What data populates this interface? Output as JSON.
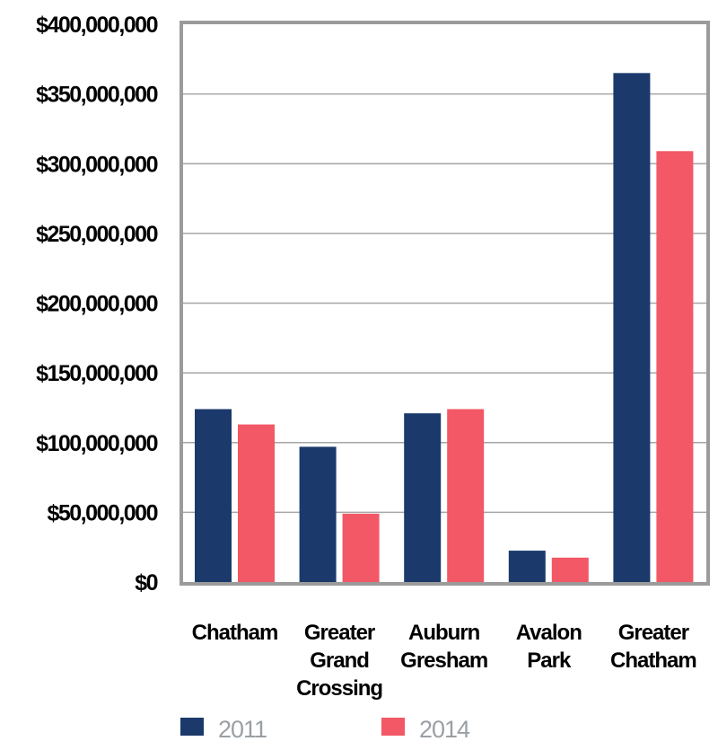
{
  "chart_data": {
    "type": "bar",
    "title": "",
    "xlabel": "",
    "ylabel": "",
    "categories": [
      [
        "Chatham"
      ],
      [
        "Greater",
        "Grand",
        "Crossing"
      ],
      [
        "Auburn",
        "Gresham"
      ],
      [
        "Avalon",
        "Park"
      ],
      [
        "Greater",
        "Chatham"
      ]
    ],
    "category_names": [
      "Chatham",
      "Greater Grand Crossing",
      "Auburn Gresham",
      "Avalon Park",
      "Greater Chatham"
    ],
    "series": [
      {
        "name": "2011",
        "color": "#1b3a6b",
        "values": [
          124000000,
          97000000,
          121000000,
          22500000,
          365000000
        ]
      },
      {
        "name": "2014",
        "color": "#f25865",
        "values": [
          113000000,
          49000000,
          124000000,
          17500000,
          309000000
        ]
      }
    ],
    "ylim": [
      0,
      400000000
    ],
    "yticks": [
      0,
      50000000,
      100000000,
      150000000,
      200000000,
      250000000,
      300000000,
      350000000,
      400000000
    ],
    "ytick_labels": [
      "$0",
      "$50,000,000",
      "$100,000,000",
      "$150,000,000",
      "$200,000,000",
      "$250,000,000",
      "$300,000,000",
      "$350,000,000",
      "$400,000,000"
    ],
    "grid": true,
    "legend": {
      "placement": "bottom",
      "entries": [
        "2011",
        "2014"
      ]
    },
    "colors": {
      "frame": "#9b9b9b",
      "grid": "#a6a6a6",
      "legend_text": "#9aa0a4"
    }
  }
}
